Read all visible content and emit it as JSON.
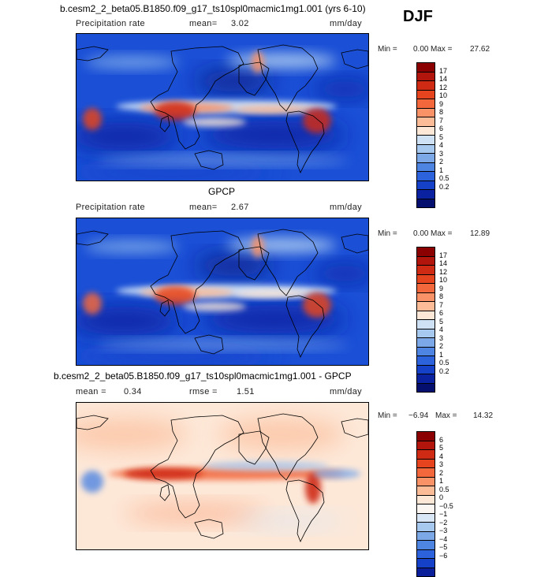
{
  "season": "DJF",
  "chart_data": [
    {
      "type": "heatmap",
      "title": "b.cesm2_2_beta05.B1850.f09_g17_ts10spl0macmic1mg1.001 (yrs 6-10)",
      "variable": "Precipitation rate",
      "units": "mm/day",
      "mean_label": "mean=",
      "mean": "3.02",
      "min_label": "Min =",
      "min": "0.00",
      "max_label": "Max =",
      "max": "27.62",
      "colorbar_levels": [
        "17",
        "14",
        "12",
        "10",
        "9",
        "8",
        "7",
        "6",
        "5",
        "4",
        "3",
        "2",
        "1",
        "0.5",
        "0.2"
      ],
      "colors": [
        "#8b0000",
        "#b1150c",
        "#cf2a14",
        "#e5441f",
        "#f2683c",
        "#f99266",
        "#fcbc98",
        "#fde8d8",
        "#cfe1f5",
        "#a7c8ef",
        "#7ca8e8",
        "#4f85e2",
        "#2c62dc",
        "#1540c8",
        "#0a22a0",
        "#050f6e"
      ]
    },
    {
      "type": "heatmap",
      "title": "GPCP",
      "variable": "Precipitation rate",
      "units": "mm/day",
      "mean_label": "mean=",
      "mean": "2.67",
      "min_label": "Min =",
      "min": "0.00",
      "max_label": "Max =",
      "max": "12.89",
      "colorbar_levels": [
        "17",
        "14",
        "12",
        "10",
        "9",
        "8",
        "7",
        "6",
        "5",
        "4",
        "3",
        "2",
        "1",
        "0.5",
        "0.2"
      ],
      "colors": [
        "#8b0000",
        "#b1150c",
        "#cf2a14",
        "#e5441f",
        "#f2683c",
        "#f99266",
        "#fcbc98",
        "#fde8d8",
        "#cfe1f5",
        "#a7c8ef",
        "#7ca8e8",
        "#4f85e2",
        "#2c62dc",
        "#1540c8",
        "#0a22a0",
        "#050f6e"
      ]
    },
    {
      "type": "heatmap",
      "title": "b.cesm2_2_beta05.B1850.f09_g17_ts10spl0macmic1mg1.001 - GPCP",
      "units": "mm/day",
      "mean_label": "mean =",
      "mean": "0.34",
      "rmse_label": "rmse =",
      "rmse": "1.51",
      "min_label": "Min =",
      "min": "−6.94",
      "max_label": "Max =",
      "max": "14.32",
      "colorbar_levels": [
        "6",
        "5",
        "4",
        "3",
        "2",
        "1",
        "0.5",
        "0",
        "−0.5",
        "−1",
        "−2",
        "−3",
        "−4",
        "−5",
        "−6"
      ],
      "colors": [
        "#8b0000",
        "#b1150c",
        "#cf2a14",
        "#e5441f",
        "#f2683c",
        "#f99266",
        "#fcbc98",
        "#fde8d8",
        "#fbf6f2",
        "#d8e6f6",
        "#a7c8ef",
        "#7ca8e8",
        "#4f85e2",
        "#2c62dc",
        "#1540c8",
        "#0a1f99"
      ]
    }
  ]
}
